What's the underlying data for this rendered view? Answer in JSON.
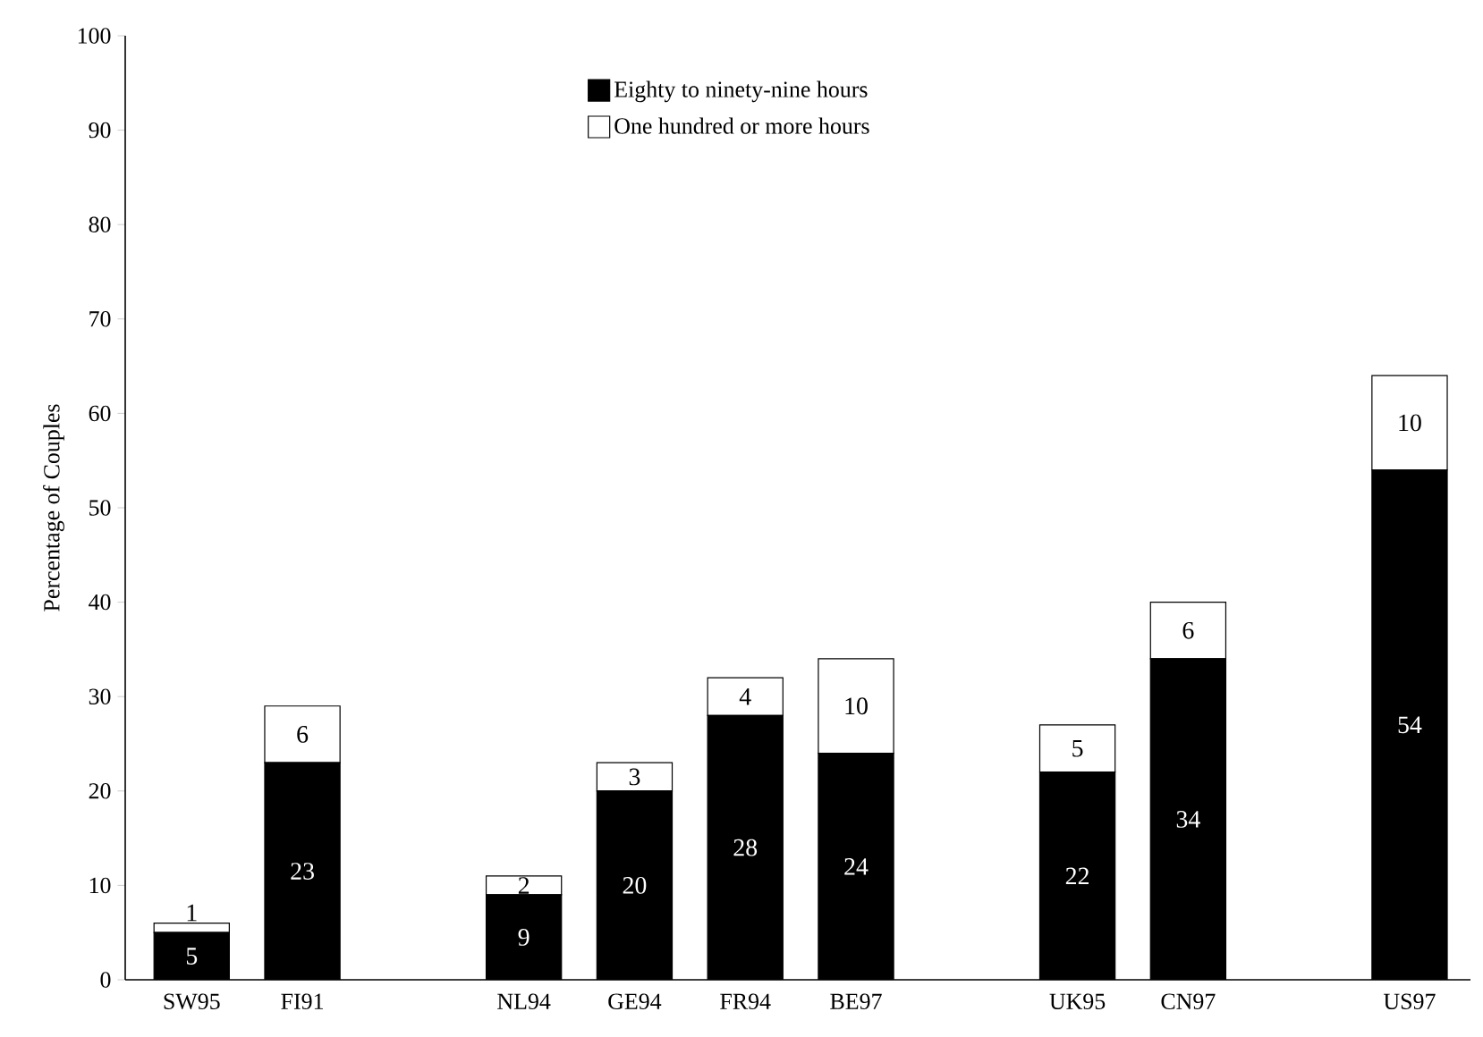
{
  "chart_data": {
    "type": "bar",
    "stacked": true,
    "ylabel": "Percentage of Couples",
    "categories": [
      "SW95",
      "FI91",
      null,
      "NL94",
      "GE94",
      "FR94",
      "BE97",
      null,
      "UK95",
      "CN97",
      null,
      "US97"
    ],
    "series": [
      {
        "name": "Eighty to ninety-nine hours",
        "color": "#000000",
        "values": [
          5,
          23,
          null,
          9,
          20,
          28,
          24,
          null,
          22,
          34,
          null,
          54
        ]
      },
      {
        "name": "One hundred or more hours",
        "color": "#ffffff",
        "values": [
          1,
          6,
          null,
          2,
          3,
          4,
          10,
          null,
          5,
          6,
          null,
          10
        ]
      }
    ],
    "ylim": [
      0,
      100
    ],
    "yticks": [
      0,
      10,
      20,
      30,
      40,
      50,
      60,
      70,
      80,
      90,
      100
    ],
    "data_labels": true,
    "legend": "top",
    "grid": false
  }
}
